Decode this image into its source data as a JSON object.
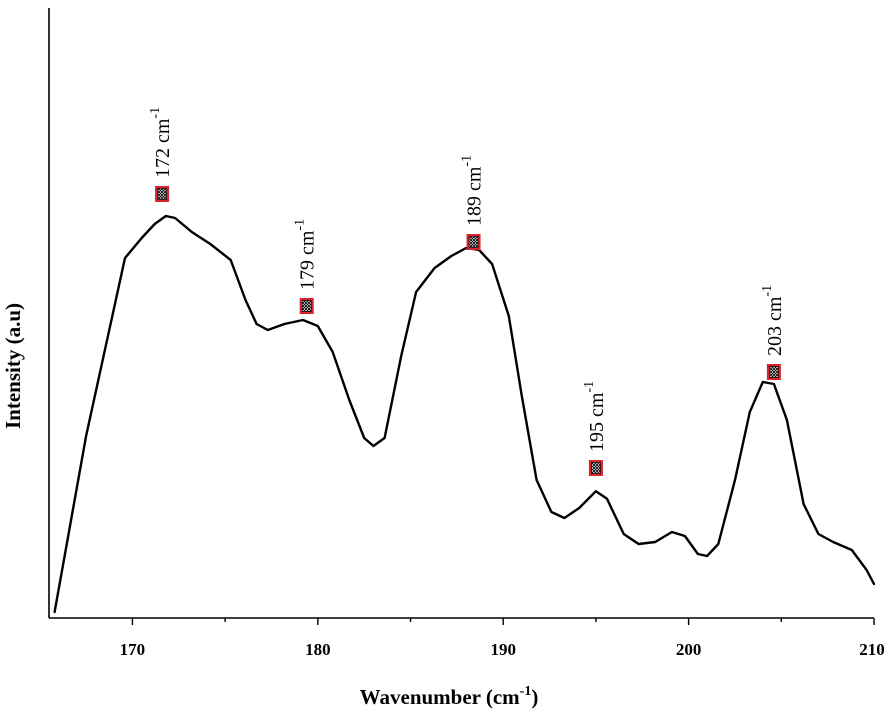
{
  "chart_data": {
    "type": "line",
    "xlabel": "Wavenumber (cm",
    "xlabel_sup": "-1",
    "xlabel_close": ")",
    "ylabel": "Intensity (a.u)",
    "xlim": [
      165.5,
      210
    ],
    "ylim": [
      0,
      1
    ],
    "xticks": [
      170,
      180,
      190,
      200,
      210
    ],
    "yticks_shown": false,
    "series": [
      {
        "color": "#000000",
        "points": [
          [
            165.8,
            0.0
          ],
          [
            167.5,
            0.44
          ],
          [
            169.6,
            0.885
          ],
          [
            170.5,
            0.935
          ],
          [
            171.2,
            0.97
          ],
          [
            171.8,
            0.99
          ],
          [
            172.3,
            0.985
          ],
          [
            173.2,
            0.95
          ],
          [
            174.2,
            0.92
          ],
          [
            175.3,
            0.88
          ],
          [
            176.1,
            0.78
          ],
          [
            176.7,
            0.72
          ],
          [
            177.3,
            0.705
          ],
          [
            178.2,
            0.72
          ],
          [
            179.2,
            0.73
          ],
          [
            180.0,
            0.715
          ],
          [
            180.8,
            0.65
          ],
          [
            181.7,
            0.53
          ],
          [
            182.5,
            0.435
          ],
          [
            183.0,
            0.415
          ],
          [
            183.6,
            0.435
          ],
          [
            184.5,
            0.64
          ],
          [
            185.3,
            0.8
          ],
          [
            186.3,
            0.86
          ],
          [
            187.2,
            0.89
          ],
          [
            188.0,
            0.91
          ],
          [
            188.7,
            0.905
          ],
          [
            189.4,
            0.87
          ],
          [
            190.3,
            0.74
          ],
          [
            191.0,
            0.54
          ],
          [
            191.8,
            0.33
          ],
          [
            192.6,
            0.25
          ],
          [
            193.3,
            0.235
          ],
          [
            194.1,
            0.26
          ],
          [
            195.0,
            0.302
          ],
          [
            195.6,
            0.283
          ],
          [
            196.5,
            0.195
          ],
          [
            197.3,
            0.17
          ],
          [
            198.2,
            0.175
          ],
          [
            199.1,
            0.2
          ],
          [
            199.8,
            0.19
          ],
          [
            200.5,
            0.145
          ],
          [
            201.0,
            0.14
          ],
          [
            201.6,
            0.17
          ],
          [
            202.5,
            0.33
          ],
          [
            203.3,
            0.5
          ],
          [
            204.0,
            0.575
          ],
          [
            204.6,
            0.57
          ],
          [
            205.3,
            0.48
          ],
          [
            206.2,
            0.27
          ],
          [
            207.0,
            0.195
          ],
          [
            207.8,
            0.175
          ],
          [
            208.8,
            0.155
          ],
          [
            209.6,
            0.105
          ],
          [
            210.0,
            0.07
          ]
        ]
      }
    ],
    "annotations": [
      {
        "x": 171.6,
        "y": 1.045,
        "text": "172 cm",
        "sup": "-1"
      },
      {
        "x": 179.4,
        "y": 0.765,
        "text": "179 cm",
        "sup": "-1"
      },
      {
        "x": 188.4,
        "y": 0.925,
        "text": "189 cm",
        "sup": "-1"
      },
      {
        "x": 195.0,
        "y": 0.36,
        "text": "195 cm",
        "sup": "-1"
      },
      {
        "x": 204.6,
        "y": 0.6,
        "text": "203 cm",
        "sup": "-1"
      }
    ],
    "marker_color": "#d9232d",
    "grid": false,
    "legend": "none"
  }
}
